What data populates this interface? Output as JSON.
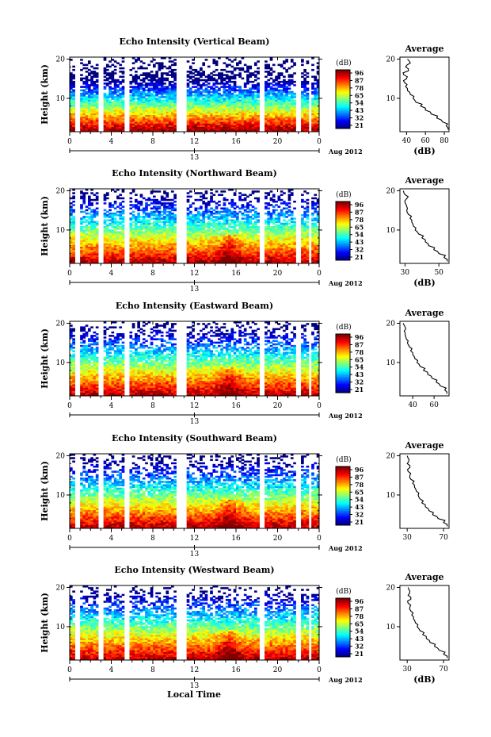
{
  "common": {
    "y_label": "Height (km)",
    "x_ticks": [
      "0",
      "4",
      "8",
      "12",
      "16",
      "20",
      "0"
    ],
    "y_ticks": [
      "20",
      "10"
    ],
    "date_marker": "13",
    "date_right": "Aug 2012",
    "colorbar_unit": "(dB)",
    "colorbar_ticks": [
      "96",
      "87",
      "78",
      "65",
      "54",
      "43",
      "32",
      "21"
    ],
    "avg_title": "Average",
    "avg_xlabel": "(dB)",
    "avg_yticks": [
      "20",
      "10"
    ],
    "x_axis_title": "Local Time"
  },
  "chart_data": [
    {
      "type": "heatmap",
      "title": "Echo Intensity (Vertical Beam)",
      "xlabel": "",
      "ylabel": "Height (km)",
      "xlim": [
        0,
        24
      ],
      "ylim": [
        1.5,
        20.5
      ],
      "colorbar": {
        "unit": "(dB)",
        "ticks": [
          96,
          87,
          78,
          65,
          54,
          43,
          32,
          21
        ]
      },
      "gaps_hours": [
        [
          0.6,
          0.9
        ],
        [
          2.8,
          3.2
        ],
        [
          5.3,
          5.8
        ],
        [
          10.2,
          11.3
        ],
        [
          18.2,
          18.8
        ],
        [
          21.8,
          22.2
        ],
        [
          22.9,
          23.3
        ]
      ],
      "average_profile": {
        "title": "Average",
        "xlabel": "(dB)",
        "xticks": [
          "40",
          "60",
          "80"
        ],
        "xlim": [
          33,
          85
        ],
        "height": [
          2,
          3,
          4,
          5,
          6,
          7,
          8,
          9,
          10,
          11,
          12,
          13,
          14,
          15,
          16,
          17,
          18,
          19,
          20
        ],
        "value": [
          84,
          82,
          78,
          72,
          66,
          60,
          55,
          50,
          47,
          44,
          41,
          39,
          38,
          40,
          37,
          42,
          39,
          44,
          41
        ]
      }
    },
    {
      "type": "heatmap",
      "title": "Echo Intensity (Northward Beam)",
      "xlabel": "",
      "ylabel": "Height (km)",
      "xlim": [
        0,
        24
      ],
      "ylim": [
        1.5,
        20.5
      ],
      "colorbar": {
        "unit": "(dB)",
        "ticks": [
          96,
          87,
          78,
          65,
          54,
          43,
          32,
          21
        ]
      },
      "gaps_hours": [
        [
          0.6,
          0.9
        ],
        [
          2.8,
          3.2
        ],
        [
          5.3,
          5.8
        ],
        [
          10.2,
          11.3
        ],
        [
          18.2,
          18.8
        ],
        [
          21.8,
          22.2
        ],
        [
          22.9,
          23.3
        ]
      ],
      "average_profile": {
        "title": "Average",
        "xlabel": "(dB)",
        "xticks": [
          "30",
          "50"
        ],
        "xlim": [
          27,
          56
        ],
        "height": [
          2,
          3,
          4,
          5,
          6,
          7,
          8,
          9,
          10,
          11,
          12,
          13,
          14,
          15,
          16,
          17,
          18,
          19,
          20
        ],
        "value": [
          55,
          53,
          50,
          47,
          44,
          42,
          40,
          38,
          36,
          35,
          34,
          33,
          32,
          31,
          31,
          30,
          31,
          30,
          29
        ]
      }
    },
    {
      "type": "heatmap",
      "title": "Echo Intensity (Eastward Beam)",
      "xlabel": "",
      "ylabel": "Height (km)",
      "xlim": [
        0,
        24
      ],
      "ylim": [
        1.5,
        20.5
      ],
      "colorbar": {
        "unit": "(dB)",
        "ticks": [
          96,
          87,
          78,
          65,
          54,
          43,
          32,
          21
        ]
      },
      "gaps_hours": [
        [
          0.6,
          0.9
        ],
        [
          2.8,
          3.2
        ],
        [
          5.3,
          5.8
        ],
        [
          10.2,
          11.3
        ],
        [
          18.2,
          18.8
        ],
        [
          21.8,
          22.2
        ],
        [
          22.9,
          23.3
        ]
      ],
      "average_profile": {
        "title": "Average",
        "xlabel": "",
        "xticks": [
          "40",
          "60"
        ],
        "xlim": [
          28,
          74
        ],
        "height": [
          2,
          3,
          4,
          5,
          6,
          7,
          8,
          9,
          10,
          11,
          12,
          13,
          14,
          15,
          16,
          17,
          18,
          19,
          20
        ],
        "value": [
          72,
          70,
          66,
          62,
          58,
          54,
          50,
          47,
          44,
          42,
          40,
          38,
          37,
          35,
          34,
          33,
          32,
          33,
          31
        ]
      }
    },
    {
      "type": "heatmap",
      "title": "Echo Intensity (Southward Beam)",
      "xlabel": "",
      "ylabel": "Height (km)",
      "xlim": [
        0,
        24
      ],
      "ylim": [
        1.5,
        20.5
      ],
      "colorbar": {
        "unit": "(dB)",
        "ticks": [
          96,
          87,
          78,
          65,
          54,
          43,
          32,
          21
        ]
      },
      "gaps_hours": [
        [
          0.6,
          0.9
        ],
        [
          2.8,
          3.2
        ],
        [
          5.3,
          5.8
        ],
        [
          10.2,
          11.3
        ],
        [
          18.2,
          18.8
        ],
        [
          21.8,
          22.2
        ],
        [
          22.9,
          23.3
        ]
      ],
      "average_profile": {
        "title": "Average",
        "xlabel": "",
        "xticks": [
          "30",
          "70"
        ],
        "xlim": [
          22,
          76
        ],
        "height": [
          2,
          3,
          4,
          5,
          6,
          7,
          8,
          9,
          10,
          11,
          12,
          13,
          14,
          15,
          16,
          17,
          18,
          19,
          20
        ],
        "value": [
          74,
          70,
          64,
          58,
          54,
          50,
          46,
          44,
          42,
          40,
          38,
          36,
          34,
          33,
          31,
          33,
          30,
          32,
          30
        ]
      }
    },
    {
      "type": "heatmap",
      "title": "Echo Intensity (Westward Beam)",
      "xlabel": "Local Time",
      "ylabel": "Height (km)",
      "xlim": [
        0,
        24
      ],
      "ylim": [
        1.5,
        20.5
      ],
      "colorbar": {
        "unit": "(dB)",
        "ticks": [
          96,
          87,
          78,
          65,
          54,
          43,
          32,
          21
        ]
      },
      "gaps_hours": [
        [
          0.6,
          0.9
        ],
        [
          2.8,
          3.2
        ],
        [
          5.3,
          5.8
        ],
        [
          10.2,
          11.3
        ],
        [
          18.2,
          18.8
        ],
        [
          21.8,
          22.2
        ],
        [
          22.9,
          23.3
        ]
      ],
      "average_profile": {
        "title": "Average",
        "xlabel": "(dB)",
        "xticks": [
          "30",
          "70"
        ],
        "xlim": [
          22,
          76
        ],
        "height": [
          2,
          3,
          4,
          5,
          6,
          7,
          8,
          9,
          10,
          11,
          12,
          13,
          14,
          15,
          16,
          17,
          18,
          19,
          20
        ],
        "value": [
          74,
          70,
          65,
          60,
          55,
          51,
          47,
          44,
          41,
          39,
          37,
          35,
          34,
          33,
          31,
          34,
          31,
          33,
          31
        ]
      }
    }
  ]
}
